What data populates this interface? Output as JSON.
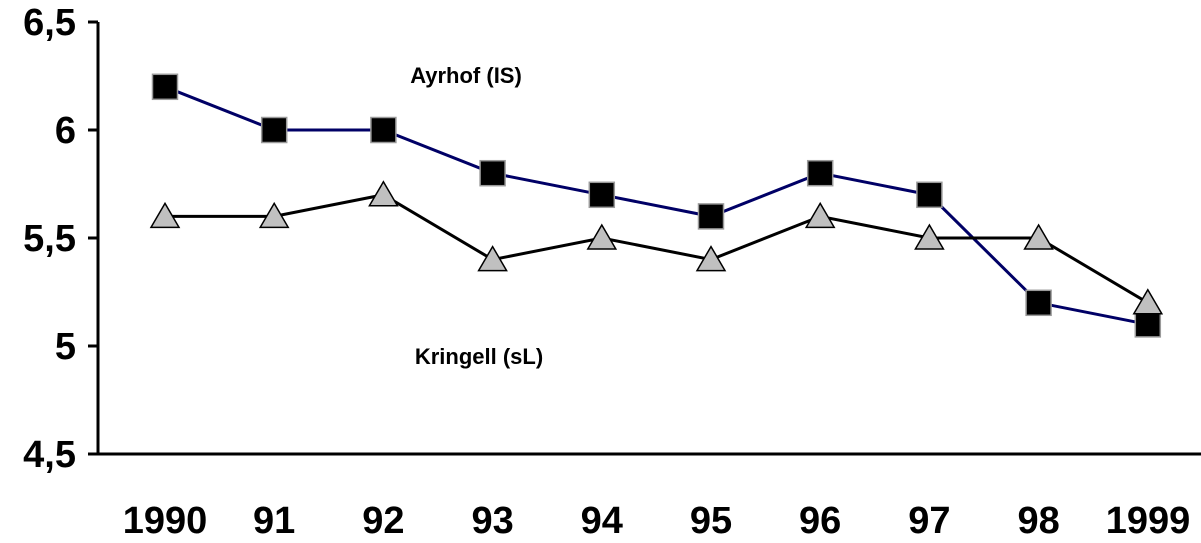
{
  "chart_data": {
    "type": "line",
    "categories": [
      "1990",
      "91",
      "92",
      "93",
      "94",
      "95",
      "96",
      "97",
      "98",
      "1999"
    ],
    "ylim": [
      4.5,
      6.5
    ],
    "yticks": [
      4.5,
      5,
      5.5,
      6,
      6.5
    ],
    "ytick_labels": [
      "4,5",
      "5",
      "5,5",
      "6",
      "6,5"
    ],
    "grid": false,
    "series": [
      {
        "name": "Ayrhof (IS)",
        "marker": "square",
        "line_color": "#000066",
        "marker_color": "#000000",
        "values": [
          6.2,
          6.0,
          6.0,
          5.8,
          5.7,
          5.6,
          5.8,
          5.7,
          5.2,
          5.1
        ]
      },
      {
        "name": "Kringell (sL)",
        "marker": "triangle",
        "line_color": "#000000",
        "marker_color": "#c0c0c0",
        "values": [
          5.6,
          5.6,
          5.7,
          5.4,
          5.5,
          5.4,
          5.6,
          5.5,
          5.5,
          5.2
        ]
      }
    ]
  }
}
